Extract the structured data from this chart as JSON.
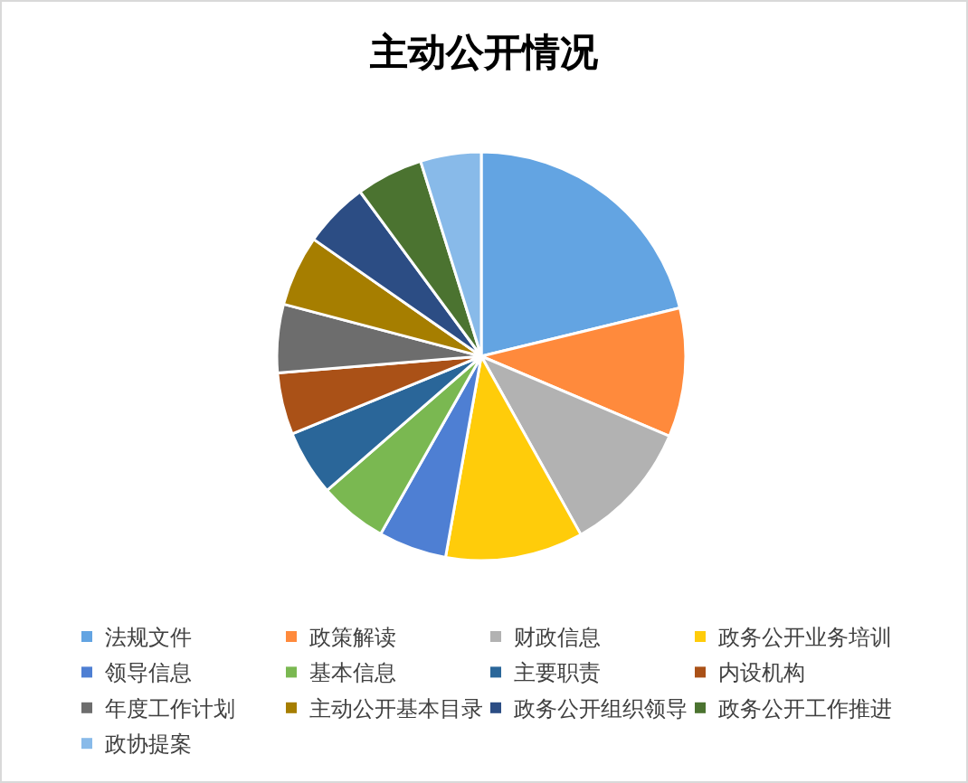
{
  "chart_data": {
    "type": "pie",
    "title": "主动公开情况",
    "categories": [
      "法规文件",
      "政策解读",
      "财政信息",
      "政务公开业务培训",
      "领导信息",
      "基本信息",
      "主要职责",
      "内设机构",
      "年度工作计划",
      "主动公开基本目录",
      "政务公开组织领导",
      "政务公开工作推进",
      "政协提案"
    ],
    "values": [
      21.2,
      10.2,
      10.5,
      10.9,
      5.4,
      5.4,
      5.2,
      4.9,
      5.4,
      5.6,
      5.2,
      5.3,
      4.8
    ],
    "colors": [
      "#63a4e2",
      "#ff8a3c",
      "#b2b2b2",
      "#ffcc0a",
      "#4e7fd3",
      "#7ab851",
      "#2a6699",
      "#aa5117",
      "#6d6d6d",
      "#a67e00",
      "#2c4d84",
      "#4b7330",
      "#88bae9"
    ],
    "legend": "bottom"
  }
}
